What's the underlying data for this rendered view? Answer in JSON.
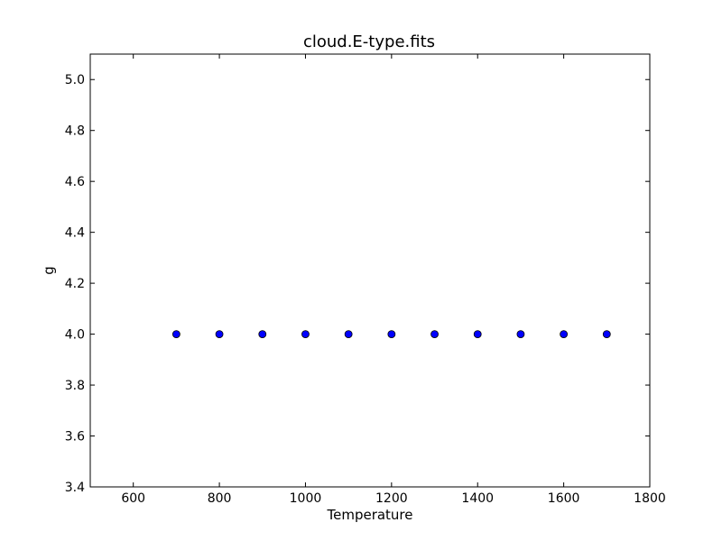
{
  "chart_data": {
    "type": "scatter",
    "title": "cloud.E-type.fits",
    "xlabel": "Temperature",
    "ylabel": "g",
    "xlim": [
      500,
      1800
    ],
    "ylim": [
      3.4,
      5.1
    ],
    "xticks": [
      600,
      800,
      1000,
      1200,
      1400,
      1600,
      1800
    ],
    "yticks": [
      3.4,
      3.6,
      3.8,
      4.0,
      4.2,
      4.4,
      4.6,
      4.8,
      5.0
    ],
    "grid": false,
    "legend": "none",
    "series": [
      {
        "color": "#0000ff",
        "x": [
          700,
          800,
          900,
          1000,
          1100,
          1200,
          1300,
          1400,
          1500,
          1600,
          1700
        ],
        "y": [
          4.0,
          4.0,
          4.0,
          4.0,
          4.0,
          4.0,
          4.0,
          4.0,
          4.0,
          4.0,
          4.0
        ]
      }
    ]
  }
}
